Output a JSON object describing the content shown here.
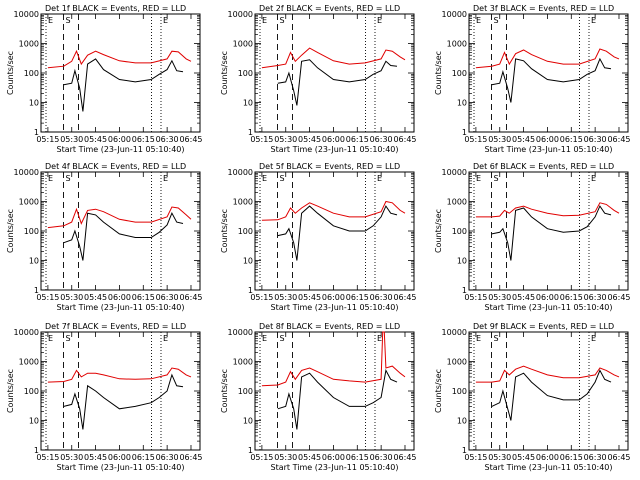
{
  "common": {
    "xlabel": "Start Time (23-Jun-11 05:10:40)",
    "ylabel": "Counts/sec",
    "x_ticks": [
      "05:15",
      "05:30",
      "05:45",
      "06:00",
      "06:15",
      "06:30",
      "06:45"
    ],
    "y_ticks": [
      "1",
      "10",
      "100",
      "1000",
      "10000"
    ],
    "ylim": [
      1,
      10000
    ],
    "y_scale": "log",
    "markers": [
      {
        "label": "E",
        "style": "dotted"
      },
      {
        "label": "S",
        "style": "dashed"
      },
      {
        "label": "",
        "style": "dashed"
      },
      {
        "label": "",
        "style": "dotted"
      },
      {
        "label": "E",
        "style": "dotted"
      }
    ],
    "colors": {
      "events": "#000000",
      "lld": "#e00000"
    }
  },
  "chart_data": [
    {
      "type": "line",
      "title": "Det 1f BLACK = Events, RED = LLD",
      "series": [
        {
          "name": "Events",
          "color": "#000000",
          "x": [
            "05:25",
            "05:30",
            "05:32",
            "05:35",
            "05:37",
            "05:40",
            "05:45",
            "05:50",
            "06:00",
            "06:10",
            "06:20",
            "06:25",
            "06:30",
            "06:33",
            "06:36",
            "06:40"
          ],
          "values": [
            40,
            45,
            120,
            30,
            5,
            200,
            300,
            130,
            60,
            50,
            60,
            90,
            130,
            260,
            120,
            110
          ]
        },
        {
          "name": "LLD",
          "color": "#e00000",
          "x": [
            "05:15",
            "05:25",
            "05:30",
            "05:33",
            "05:36",
            "05:40",
            "05:45",
            "05:50",
            "06:00",
            "06:10",
            "06:20",
            "06:30",
            "06:33",
            "06:37",
            "06:42",
            "06:45"
          ],
          "values": [
            150,
            170,
            250,
            550,
            200,
            400,
            550,
            420,
            260,
            220,
            220,
            300,
            550,
            520,
            300,
            250
          ]
        }
      ]
    },
    {
      "type": "line",
      "title": "Det 2f BLACK = Events, RED = LLD",
      "series": [
        {
          "name": "Events",
          "color": "#000000",
          "x": [
            "05:25",
            "05:30",
            "05:32",
            "05:35",
            "05:37",
            "05:40",
            "05:45",
            "05:50",
            "06:00",
            "06:10",
            "06:20",
            "06:25",
            "06:30",
            "06:33",
            "06:36",
            "06:40"
          ],
          "values": [
            45,
            50,
            100,
            25,
            8,
            250,
            280,
            150,
            60,
            50,
            60,
            90,
            120,
            250,
            180,
            170
          ]
        },
        {
          "name": "LLD",
          "color": "#e00000",
          "x": [
            "05:15",
            "05:25",
            "05:30",
            "05:33",
            "05:36",
            "05:40",
            "05:45",
            "05:50",
            "06:00",
            "06:10",
            "06:20",
            "06:30",
            "06:33",
            "06:37",
            "06:42",
            "06:45"
          ],
          "values": [
            150,
            180,
            200,
            500,
            250,
            400,
            700,
            500,
            260,
            200,
            220,
            300,
            600,
            550,
            350,
            280
          ]
        }
      ]
    },
    {
      "type": "line",
      "title": "Det 3f BLACK = Events, RED = LLD",
      "series": [
        {
          "name": "Events",
          "color": "#000000",
          "x": [
            "05:25",
            "05:30",
            "05:32",
            "05:35",
            "05:37",
            "05:40",
            "05:45",
            "05:50",
            "06:00",
            "06:10",
            "06:20",
            "06:25",
            "06:30",
            "06:33",
            "06:36",
            "06:40"
          ],
          "values": [
            40,
            45,
            110,
            30,
            10,
            300,
            260,
            140,
            60,
            50,
            60,
            90,
            120,
            300,
            150,
            140
          ]
        },
        {
          "name": "LLD",
          "color": "#e00000",
          "x": [
            "05:15",
            "05:25",
            "05:30",
            "05:33",
            "05:36",
            "05:40",
            "05:45",
            "05:50",
            "06:00",
            "06:10",
            "06:20",
            "06:30",
            "06:33",
            "06:37",
            "06:42",
            "06:45"
          ],
          "values": [
            150,
            170,
            200,
            500,
            200,
            450,
            600,
            420,
            250,
            200,
            200,
            300,
            650,
            550,
            350,
            300
          ]
        }
      ]
    },
    {
      "type": "line",
      "title": "Det 4f BLACK = Events, RED = LLD",
      "series": [
        {
          "name": "Events",
          "color": "#000000",
          "x": [
            "05:25",
            "05:30",
            "05:32",
            "05:35",
            "05:37",
            "05:40",
            "05:45",
            "05:50",
            "06:00",
            "06:10",
            "06:20",
            "06:25",
            "06:30",
            "06:33",
            "06:36",
            "06:40"
          ],
          "values": [
            40,
            50,
            100,
            30,
            10,
            400,
            350,
            200,
            80,
            60,
            60,
            90,
            160,
            400,
            200,
            180
          ]
        },
        {
          "name": "LLD",
          "color": "#e00000",
          "x": [
            "05:15",
            "05:25",
            "05:30",
            "05:33",
            "05:36",
            "05:40",
            "05:45",
            "05:50",
            "06:00",
            "06:10",
            "06:20",
            "06:30",
            "06:33",
            "06:37",
            "06:42",
            "06:45"
          ],
          "values": [
            130,
            150,
            200,
            550,
            180,
            500,
            550,
            450,
            250,
            200,
            200,
            300,
            650,
            600,
            350,
            250
          ]
        }
      ]
    },
    {
      "type": "line",
      "title": "Det 5f BLACK = Events, RED = LLD",
      "series": [
        {
          "name": "Events",
          "color": "#000000",
          "x": [
            "05:25",
            "05:30",
            "05:32",
            "05:35",
            "05:37",
            "05:40",
            "05:45",
            "05:50",
            "06:00",
            "06:10",
            "06:20",
            "06:25",
            "06:30",
            "06:33",
            "06:36",
            "06:40"
          ],
          "values": [
            70,
            80,
            120,
            40,
            10,
            400,
            700,
            400,
            150,
            100,
            100,
            150,
            300,
            700,
            400,
            350
          ]
        },
        {
          "name": "LLD",
          "color": "#e00000",
          "x": [
            "05:15",
            "05:25",
            "05:30",
            "05:33",
            "05:36",
            "05:40",
            "05:45",
            "05:50",
            "06:00",
            "06:10",
            "06:20",
            "06:30",
            "06:33",
            "06:37",
            "06:42",
            "06:45"
          ],
          "values": [
            230,
            240,
            300,
            600,
            400,
            600,
            900,
            700,
            400,
            300,
            300,
            450,
            1000,
            900,
            500,
            400
          ]
        }
      ]
    },
    {
      "type": "line",
      "title": "Det 6f BLACK = Events, RED = LLD",
      "series": [
        {
          "name": "Events",
          "color": "#000000",
          "x": [
            "05:25",
            "05:30",
            "05:32",
            "05:35",
            "05:37",
            "05:40",
            "05:45",
            "05:50",
            "06:00",
            "06:10",
            "06:20",
            "06:25",
            "06:30",
            "06:33",
            "06:36",
            "06:40"
          ],
          "values": [
            80,
            90,
            120,
            40,
            10,
            500,
            600,
            300,
            120,
            90,
            100,
            140,
            300,
            700,
            400,
            350
          ]
        },
        {
          "name": "LLD",
          "color": "#e00000",
          "x": [
            "05:15",
            "05:25",
            "05:30",
            "05:33",
            "05:36",
            "05:40",
            "05:45",
            "05:50",
            "06:00",
            "06:10",
            "06:20",
            "06:30",
            "06:33",
            "06:37",
            "06:42",
            "06:45"
          ],
          "values": [
            300,
            300,
            320,
            500,
            400,
            600,
            700,
            550,
            400,
            330,
            340,
            450,
            900,
            800,
            500,
            400
          ]
        }
      ]
    },
    {
      "type": "line",
      "title": "Det 7f BLACK = Events, RED = LLD",
      "series": [
        {
          "name": "Events",
          "color": "#000000",
          "x": [
            "05:25",
            "05:30",
            "05:32",
            "05:35",
            "05:37",
            "05:40",
            "05:45",
            "05:50",
            "06:00",
            "06:10",
            "06:20",
            "06:25",
            "06:30",
            "06:33",
            "06:36",
            "06:40"
          ],
          "values": [
            30,
            35,
            80,
            25,
            5,
            150,
            100,
            60,
            25,
            30,
            40,
            60,
            100,
            350,
            150,
            140
          ]
        },
        {
          "name": "LLD",
          "color": "#e00000",
          "x": [
            "05:15",
            "05:25",
            "05:30",
            "05:33",
            "05:36",
            "05:40",
            "05:45",
            "05:50",
            "06:00",
            "06:10",
            "06:20",
            "06:30",
            "06:33",
            "06:37",
            "06:42",
            "06:45"
          ],
          "values": [
            200,
            210,
            250,
            500,
            300,
            400,
            400,
            350,
            260,
            250,
            260,
            350,
            600,
            550,
            350,
            300
          ]
        }
      ]
    },
    {
      "type": "line",
      "title": "Det 8f BLACK = Events, RED = LLD",
      "series": [
        {
          "name": "Events",
          "color": "#000000",
          "x": [
            "05:25",
            "05:30",
            "05:32",
            "05:35",
            "05:37",
            "05:40",
            "05:45",
            "05:50",
            "06:00",
            "06:10",
            "06:20",
            "06:25",
            "06:30",
            "06:33",
            "06:36",
            "06:40"
          ],
          "values": [
            25,
            30,
            80,
            25,
            5,
            300,
            400,
            200,
            60,
            30,
            30,
            40,
            60,
            500,
            250,
            200
          ]
        },
        {
          "name": "LLD",
          "color": "#e00000",
          "x": [
            "05:15",
            "05:25",
            "05:30",
            "05:33",
            "05:36",
            "05:40",
            "05:45",
            "05:50",
            "06:00",
            "06:10",
            "06:20",
            "06:30",
            "06:31",
            "06:32",
            "06:33",
            "06:37",
            "06:42",
            "06:45"
          ],
          "values": [
            150,
            160,
            200,
            450,
            250,
            500,
            600,
            450,
            250,
            220,
            200,
            250,
            10000,
            10000,
            600,
            700,
            400,
            300
          ]
        }
      ]
    },
    {
      "type": "line",
      "title": "Det 9f BLACK = Events, RED = LLD",
      "series": [
        {
          "name": "Events",
          "color": "#000000",
          "x": [
            "05:25",
            "05:30",
            "05:32",
            "05:35",
            "05:37",
            "05:40",
            "05:45",
            "05:50",
            "06:00",
            "06:10",
            "06:20",
            "06:25",
            "06:30",
            "06:33",
            "06:36",
            "06:40"
          ],
          "values": [
            30,
            40,
            100,
            25,
            10,
            300,
            400,
            200,
            70,
            50,
            50,
            80,
            200,
            500,
            250,
            200
          ]
        },
        {
          "name": "LLD",
          "color": "#e00000",
          "x": [
            "05:15",
            "05:25",
            "05:30",
            "05:33",
            "05:36",
            "05:40",
            "05:45",
            "05:50",
            "06:00",
            "06:10",
            "06:20",
            "06:30",
            "06:33",
            "06:37",
            "06:42",
            "06:45"
          ],
          "values": [
            200,
            200,
            220,
            500,
            350,
            550,
            700,
            550,
            350,
            280,
            280,
            350,
            600,
            500,
            350,
            300
          ]
        }
      ]
    }
  ]
}
